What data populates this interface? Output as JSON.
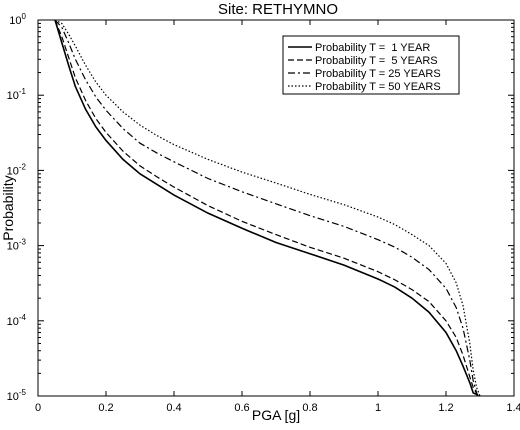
{
  "chart_data": {
    "type": "line",
    "title": "Site: RETHYMNO",
    "xlabel": "PGA [g]",
    "ylabel": "Probability",
    "xlim": [
      0,
      1.4
    ],
    "ylim": [
      1e-05,
      1
    ],
    "yscale": "log",
    "x_ticks": [
      {
        "v": 0,
        "label": "0"
      },
      {
        "v": 0.2,
        "label": "0.2"
      },
      {
        "v": 0.4,
        "label": "0.4"
      },
      {
        "v": 0.6,
        "label": "0.6"
      },
      {
        "v": 0.8,
        "label": "0.8"
      },
      {
        "v": 1.0,
        "label": "1"
      },
      {
        "v": 1.2,
        "label": "1.2"
      },
      {
        "v": 1.4,
        "label": "1.4"
      }
    ],
    "y_ticks": [
      {
        "v": 1e-05,
        "base": "10",
        "exp": "-5"
      },
      {
        "v": 0.0001,
        "base": "10",
        "exp": "-4"
      },
      {
        "v": 0.001,
        "base": "10",
        "exp": "-3"
      },
      {
        "v": 0.01,
        "base": "10",
        "exp": "-2"
      },
      {
        "v": 0.1,
        "base": "10",
        "exp": "-1"
      },
      {
        "v": 1,
        "base": "10",
        "exp": "0"
      }
    ],
    "grid": false,
    "legend_position": "top-right",
    "series": [
      {
        "name": "Probability T =  1 YEAR",
        "dash": "solid",
        "x": [
          0.05,
          0.07,
          0.09,
          0.11,
          0.14,
          0.17,
          0.2,
          0.25,
          0.3,
          0.35,
          0.4,
          0.5,
          0.6,
          0.7,
          0.8,
          0.9,
          1.0,
          1.05,
          1.1,
          1.15,
          1.2,
          1.23,
          1.25,
          1.27,
          1.28,
          1.29,
          1.295
        ],
        "y": [
          1.0,
          0.5,
          0.25,
          0.13,
          0.065,
          0.038,
          0.025,
          0.014,
          0.009,
          0.0065,
          0.0047,
          0.0027,
          0.0017,
          0.0011,
          0.00078,
          0.00055,
          0.00036,
          0.00028,
          0.0002,
          0.00013,
          7e-05,
          4e-05,
          2.5e-05,
          1.5e-05,
          1.1e-05,
          1.05e-05,
          1e-05
        ]
      },
      {
        "name": "Probability T =  5 YEARS",
        "dash": "dashed",
        "x": [
          0.05,
          0.07,
          0.09,
          0.11,
          0.14,
          0.17,
          0.2,
          0.25,
          0.3,
          0.35,
          0.4,
          0.5,
          0.6,
          0.7,
          0.8,
          0.9,
          1.0,
          1.05,
          1.1,
          1.15,
          1.2,
          1.23,
          1.25,
          1.27,
          1.28,
          1.29,
          1.295
        ],
        "y": [
          1.0,
          0.6,
          0.32,
          0.17,
          0.085,
          0.049,
          0.032,
          0.018,
          0.0115,
          0.0082,
          0.006,
          0.0034,
          0.0021,
          0.0014,
          0.00095,
          0.00068,
          0.00045,
          0.00035,
          0.00026,
          0.00018,
          0.0001,
          6e-05,
          3.5e-05,
          1.8e-05,
          1.3e-05,
          1.08e-05,
          1e-05
        ]
      },
      {
        "name": "Probability T = 25 YEARS",
        "dash": "dashdot",
        "x": [
          0.05,
          0.07,
          0.09,
          0.11,
          0.14,
          0.17,
          0.2,
          0.25,
          0.3,
          0.35,
          0.4,
          0.5,
          0.6,
          0.7,
          0.8,
          0.9,
          1.0,
          1.05,
          1.1,
          1.15,
          1.2,
          1.23,
          1.25,
          1.27,
          1.28,
          1.29,
          1.295
        ],
        "y": [
          1.0,
          0.8,
          0.5,
          0.3,
          0.16,
          0.095,
          0.063,
          0.036,
          0.023,
          0.017,
          0.013,
          0.0078,
          0.0052,
          0.0036,
          0.0025,
          0.0018,
          0.0012,
          0.00095,
          0.0007,
          0.00048,
          0.00027,
          0.00015,
          8e-05,
          3e-05,
          1.6e-05,
          1.1e-05,
          1e-05
        ]
      },
      {
        "name": "Probability T = 50 YEARS",
        "dash": "dotted",
        "x": [
          0.05,
          0.07,
          0.09,
          0.11,
          0.14,
          0.17,
          0.2,
          0.25,
          0.3,
          0.35,
          0.4,
          0.5,
          0.6,
          0.7,
          0.8,
          0.9,
          1.0,
          1.05,
          1.1,
          1.15,
          1.2,
          1.23,
          1.25,
          1.27,
          1.28,
          1.29,
          1.3
        ],
        "y": [
          1.0,
          0.9,
          0.65,
          0.45,
          0.25,
          0.15,
          0.1,
          0.06,
          0.04,
          0.029,
          0.022,
          0.014,
          0.0095,
          0.0068,
          0.0048,
          0.0035,
          0.0024,
          0.0019,
          0.0014,
          0.001,
          0.00058,
          0.00032,
          0.00016,
          5e-05,
          2.2e-05,
          1.3e-05,
          1e-05
        ]
      }
    ]
  }
}
